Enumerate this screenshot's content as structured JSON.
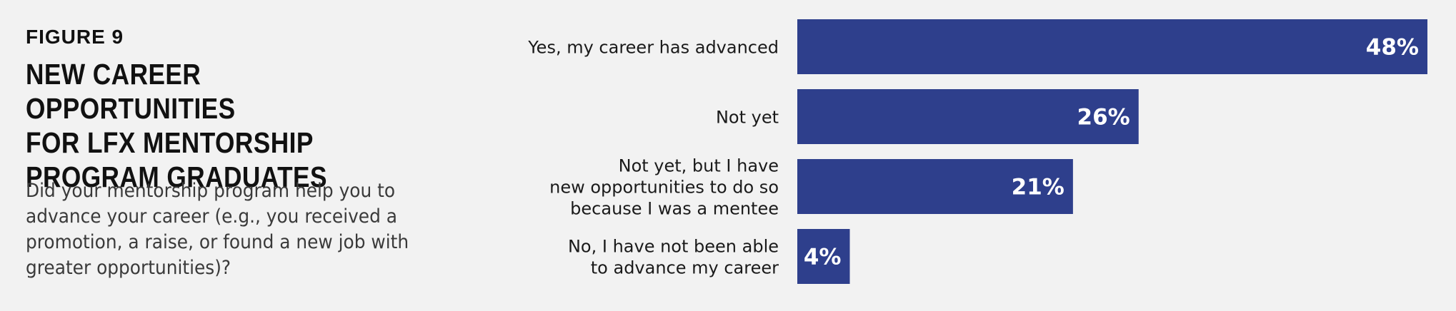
{
  "figure": {
    "label": "FIGURE 9",
    "title": "NEW CAREER OPPORTUNITIES\nFOR LFX MENTORSHIP\nPROGRAM GRADUATES",
    "question": "Did your mentorship program help you to advance your career (e.g., you received a promotion, a raise, or found a new job with greater opportunities)?"
  },
  "colors": {
    "bar": "#2e3f8c",
    "background": "#f2f2f2",
    "value_text": "#ffffff"
  },
  "chart_data": {
    "type": "bar",
    "orientation": "horizontal",
    "categories": [
      [
        "Yes, my career has advanced"
      ],
      [
        "Not yet"
      ],
      [
        "Not yet, but I have",
        "new opportunities to do so",
        "because I was a mentee"
      ],
      [
        "No, I have not been able",
        "to advance my career"
      ]
    ],
    "values": [
      48,
      26,
      21,
      4
    ],
    "value_labels": [
      "48%",
      "26%",
      "21%",
      "4%"
    ],
    "unit": "%",
    "xlim": [
      0,
      48
    ],
    "grid": false,
    "legend": "none"
  }
}
